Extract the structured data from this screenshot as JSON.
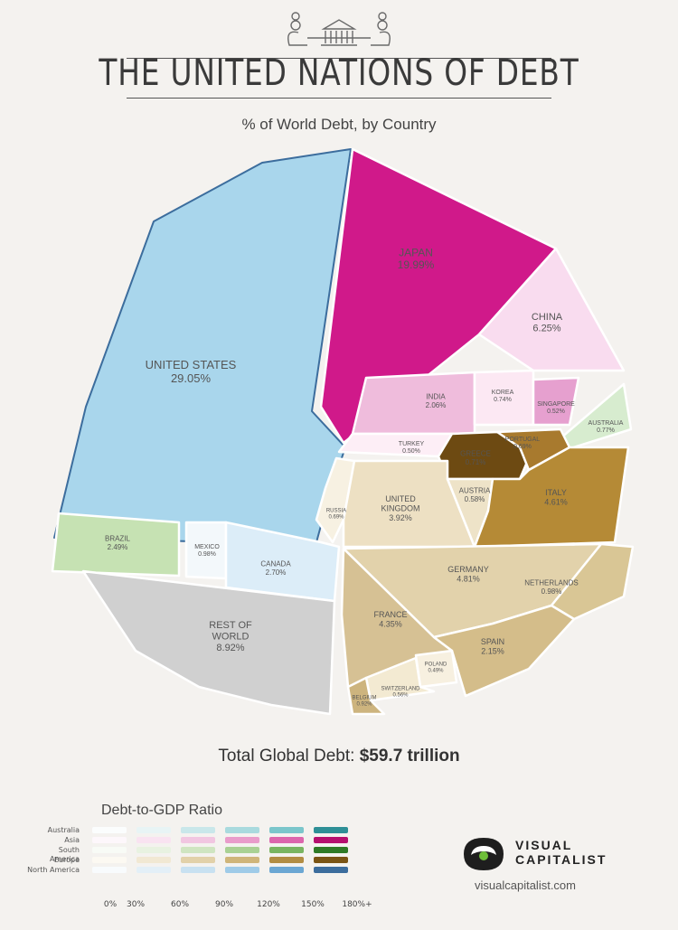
{
  "header": {
    "title": "THE UNITED NATIONS OF DEBT",
    "subtitle": "% of World Debt, by Country"
  },
  "chart_data": {
    "type": "pie",
    "title": "THE UNITED NATIONS OF DEBT",
    "subtitle": "% of World Debt, by Country",
    "series": [
      {
        "name": "North America",
        "items": [
          {
            "label": "UNITED STATES",
            "value": 29.05
          },
          {
            "label": "CANADA",
            "value": 2.7
          },
          {
            "label": "MEXICO",
            "value": 0.98
          }
        ]
      },
      {
        "name": "South America",
        "items": [
          {
            "label": "BRAZIL",
            "value": 2.49
          }
        ]
      },
      {
        "name": "Asia",
        "items": [
          {
            "label": "JAPAN",
            "value": 19.99
          },
          {
            "label": "CHINA",
            "value": 6.25
          },
          {
            "label": "INDIA",
            "value": 2.06
          },
          {
            "label": "KOREA",
            "value": 0.74
          },
          {
            "label": "SINGAPORE",
            "value": 0.52
          },
          {
            "label": "TURKEY",
            "value": 0.5
          }
        ]
      },
      {
        "name": "Australia",
        "items": [
          {
            "label": "AUSTRALIA",
            "value": 0.77
          }
        ]
      },
      {
        "name": "Europe",
        "items": [
          {
            "label": "UNITED KINGDOM",
            "value": 3.92
          },
          {
            "label": "ITALY",
            "value": 4.61
          },
          {
            "label": "GERMANY",
            "value": 4.81
          },
          {
            "label": "FRANCE",
            "value": 4.35
          },
          {
            "label": "SPAIN",
            "value": 2.15
          },
          {
            "label": "NETHERLANDS",
            "value": 0.98
          },
          {
            "label": "BELGIUM",
            "value": 0.92
          },
          {
            "label": "GREECE",
            "value": 0.71
          },
          {
            "label": "PORTUGAL",
            "value": 0.69
          },
          {
            "label": "RUSSIA",
            "value": 0.69
          },
          {
            "label": "AUSTRIA",
            "value": 0.58
          },
          {
            "label": "SWITZERLAND",
            "value": 0.56
          },
          {
            "label": "POLAND",
            "value": 0.49
          }
        ]
      },
      {
        "name": "Rest of World",
        "items": [
          {
            "label": "REST OF WORLD",
            "value": 8.92
          }
        ]
      }
    ]
  },
  "cells": [
    {
      "key": "us",
      "lines": [
        "UNITED STATES",
        "29.05%"
      ],
      "fill": "#a9d6ec",
      "text": "#3b5f8a"
    },
    {
      "key": "japan",
      "lines": [
        "JAPAN",
        "19.99%"
      ],
      "fill": "#d0198a",
      "text": "#ffffff"
    },
    {
      "key": "china",
      "lines": [
        "CHINA",
        "6.25%"
      ],
      "fill": "#f9dcef",
      "text": "#7a3a63"
    },
    {
      "key": "india",
      "lines": [
        "INDIA",
        "2.06%"
      ],
      "fill": "#efbcdc",
      "text": "#7a3a63"
    },
    {
      "key": "korea",
      "lines": [
        "KOREA",
        "0.74%"
      ],
      "fill": "#fce8f3",
      "text": "#7a3a63"
    },
    {
      "key": "singapore",
      "lines": [
        "SINGAPORE",
        "0.52%"
      ],
      "fill": "#e6a0cf",
      "text": "#ffffff"
    },
    {
      "key": "australia",
      "lines": [
        "AUSTRALIA",
        "0.77%"
      ],
      "fill": "#d7eccf",
      "text": "#4d7a4a"
    },
    {
      "key": "turkey",
      "lines": [
        "TURKEY",
        "0.50%"
      ],
      "fill": "#fdeef6",
      "text": "#7a3a63"
    },
    {
      "key": "greece",
      "lines": [
        "GREECE",
        "0.71%"
      ],
      "fill": "#6d4a12",
      "text": "#ffffff"
    },
    {
      "key": "portugal",
      "lines": [
        "PORTUGAL",
        "0.69%"
      ],
      "fill": "#a87a2e",
      "text": "#f6e7c4"
    },
    {
      "key": "russia",
      "lines": [
        "RUSSIA",
        "0.69%"
      ],
      "fill": "#f7f1e2",
      "text": "#8a7553"
    },
    {
      "key": "uk",
      "lines": [
        "UNITED",
        "KINGDOM",
        "3.92%"
      ],
      "fill": "#ede0c3",
      "text": "#6b5735"
    },
    {
      "key": "austria",
      "lines": [
        "AUSTRIA",
        "0.58%"
      ],
      "fill": "#eee3c8",
      "text": "#6b5735"
    },
    {
      "key": "italy",
      "lines": [
        "ITALY",
        "4.61%"
      ],
      "fill": "#b58a36",
      "text": "#ffffff"
    },
    {
      "key": "germany",
      "lines": [
        "GERMANY",
        "4.81%"
      ],
      "fill": "#e2d2ab",
      "text": "#6b5735"
    },
    {
      "key": "netherlands",
      "lines": [
        "NETHERLANDS",
        "0.98%"
      ],
      "fill": "#d9c695",
      "text": "#6b5735"
    },
    {
      "key": "france",
      "lines": [
        "FRANCE",
        "4.35%"
      ],
      "fill": "#d6c194",
      "text": "#6b5735"
    },
    {
      "key": "spain",
      "lines": [
        "SPAIN",
        "2.15%"
      ],
      "fill": "#d4bd8a",
      "text": "#6b5735"
    },
    {
      "key": "poland",
      "lines": [
        "POLAND",
        "0.49%"
      ],
      "fill": "#f7f0e0",
      "text": "#6b5735"
    },
    {
      "key": "switzerland",
      "lines": [
        "SWITZERLAND",
        "0.56%"
      ],
      "fill": "#f3ead2",
      "text": "#6b5735"
    },
    {
      "key": "belgium",
      "lines": [
        "BELGIUM",
        "0.92%"
      ],
      "fill": "#cdb47e",
      "text": "#6b5735"
    },
    {
      "key": "brazil",
      "lines": [
        "BRAZIL",
        "2.49%"
      ],
      "fill": "#c6e2b3",
      "text": "#4d7a4a"
    },
    {
      "key": "mexico",
      "lines": [
        "MEXICO",
        "0.98%"
      ],
      "fill": "#f3f8fb",
      "text": "#3b5f8a"
    },
    {
      "key": "canada",
      "lines": [
        "CANADA",
        "2.70%"
      ],
      "fill": "#dcedf8",
      "text": "#3b5f8a"
    },
    {
      "key": "row",
      "lines": [
        "REST OF",
        "WORLD",
        "8.92%"
      ],
      "fill": "#d0d0d0",
      "text": "#555555"
    }
  ],
  "total": {
    "label": "Total Global Debt:",
    "value": "$59.7 trillion"
  },
  "legend": {
    "title": "Debt-to-GDP Ratio",
    "rows": [
      {
        "label": "Australia",
        "colors": [
          "#fbfdfd",
          "#e8f4f5",
          "#c9e7ea",
          "#a9dade",
          "#7bc6cb",
          "#2e8f96"
        ]
      },
      {
        "label": "Asia",
        "colors": [
          "#fdf7fb",
          "#f9e3f1",
          "#f1c6e1",
          "#e99ccb",
          "#dc66ad",
          "#b5106f"
        ]
      },
      {
        "label": "South America",
        "colors": [
          "#f8fbf6",
          "#e8f2e1",
          "#cfe5c1",
          "#a9d194",
          "#79b561",
          "#2f7a26"
        ]
      },
      {
        "label": "Europe",
        "colors": [
          "#fcf9f2",
          "#f1e8d3",
          "#e2d1a9",
          "#cfb57a",
          "#b28d43",
          "#7a5414"
        ]
      },
      {
        "label": "North America",
        "colors": [
          "#f8fbfd",
          "#e3eff7",
          "#c8e1f1",
          "#9fcbe8",
          "#6ba7d3",
          "#3c6d9d"
        ]
      }
    ],
    "ticks": [
      "0%",
      "30%",
      "60%",
      "90%",
      "120%",
      "150%",
      "180%+"
    ]
  },
  "brand": {
    "line1": "VISUAL",
    "line2": "CAPITALIST",
    "url": "visualcapitalist.com"
  }
}
